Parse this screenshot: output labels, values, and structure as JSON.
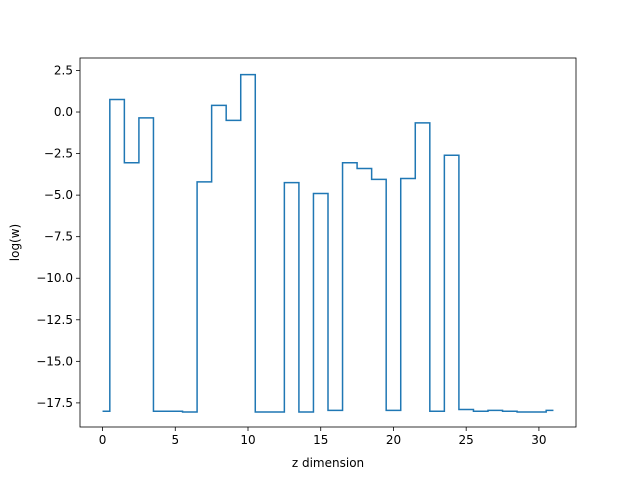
{
  "chart_data": {
    "type": "line",
    "drawstyle": "steps-mid",
    "title": "",
    "xlabel": "z dimension",
    "ylabel": "log(w)",
    "xlim": [
      -1.55,
      32.55
    ],
    "ylim": [
      -18.95,
      3.25
    ],
    "xticks": [
      0,
      5,
      10,
      15,
      20,
      25,
      30
    ],
    "xtick_labels": [
      "0",
      "5",
      "10",
      "15",
      "20",
      "25",
      "30"
    ],
    "yticks": [
      2.5,
      0.0,
      -2.5,
      -5.0,
      -7.5,
      -10.0,
      -12.5,
      -15.0,
      -17.5
    ],
    "ytick_labels": [
      "2.5",
      "0.0",
      "−2.5",
      "−5.0",
      "−7.5",
      "−10.0",
      "−12.5",
      "−15.0",
      "−17.5"
    ],
    "grid": false,
    "series": [
      {
        "color": "#1f77b4",
        "x": [
          0,
          1,
          2,
          3,
          4,
          5,
          6,
          7,
          8,
          9,
          10,
          11,
          12,
          13,
          14,
          15,
          16,
          17,
          18,
          19,
          20,
          21,
          22,
          23,
          24,
          25,
          26,
          27,
          28,
          29,
          30,
          31
        ],
        "values": [
          -18.0,
          0.75,
          -3.05,
          -0.35,
          -18.0,
          -18.0,
          -18.05,
          -4.2,
          0.4,
          -0.5,
          2.25,
          -18.05,
          -18.05,
          -4.25,
          -18.05,
          -4.9,
          -17.95,
          -3.05,
          -3.4,
          -4.05,
          -17.95,
          -4.0,
          -0.65,
          -18.0,
          -2.6,
          -17.9,
          -18.0,
          -17.95,
          -18.0,
          -18.05,
          -18.05,
          -17.95
        ]
      }
    ]
  }
}
